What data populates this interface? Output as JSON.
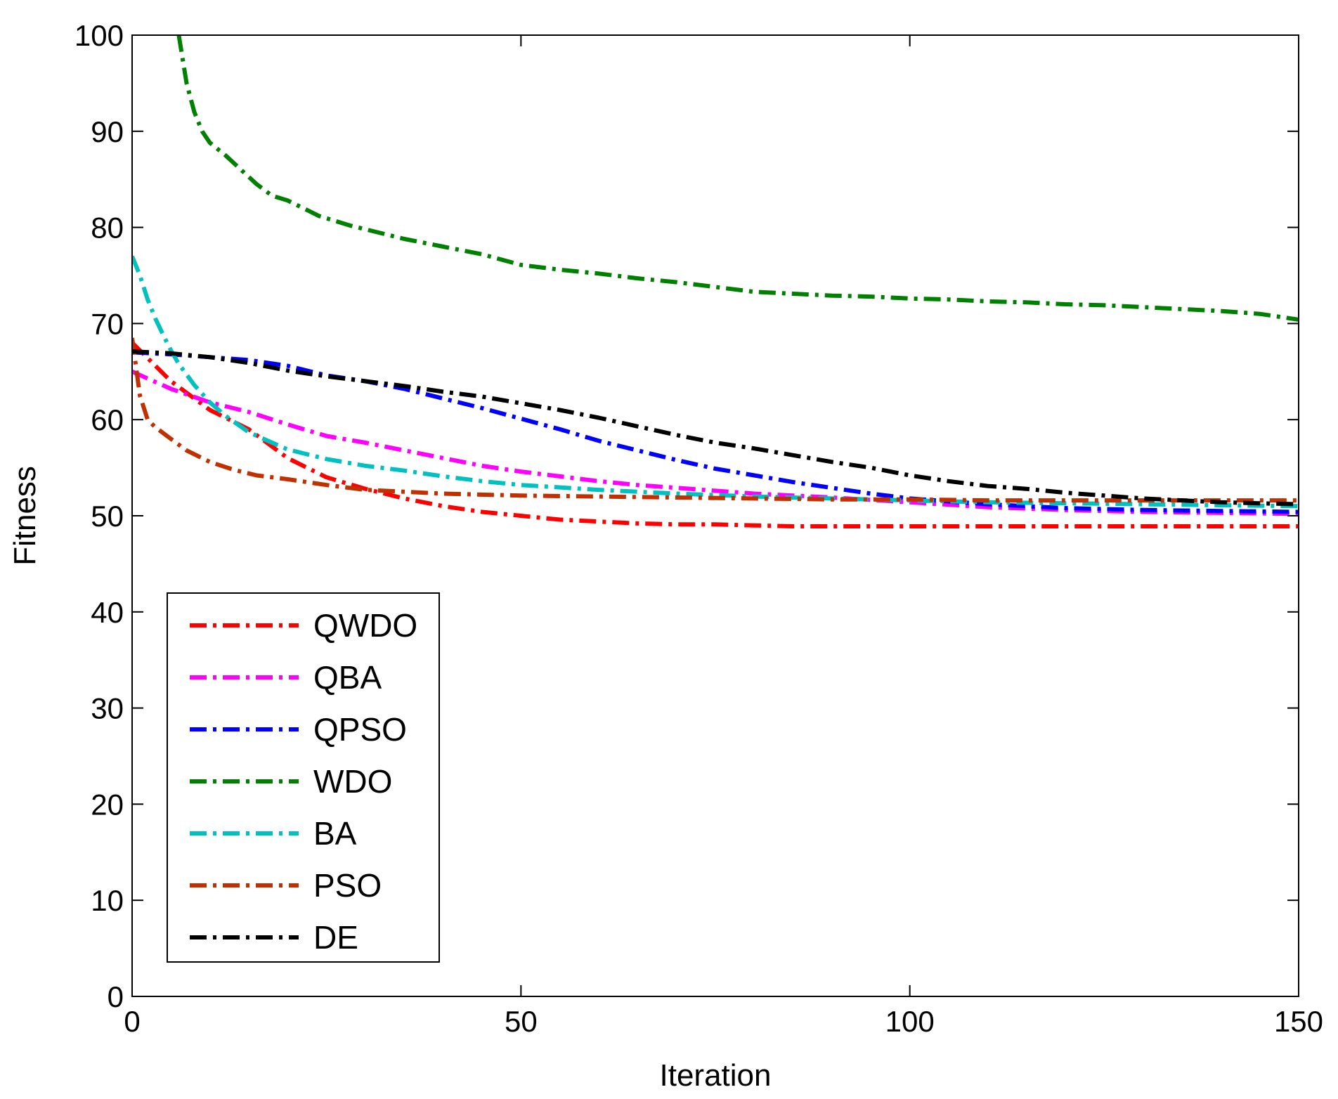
{
  "chart_data": {
    "type": "line",
    "title": "",
    "xlabel": "Iteration",
    "ylabel": "Fitness",
    "xlim": [
      0,
      150
    ],
    "ylim": [
      0,
      100
    ],
    "xticks": [
      0,
      50,
      100,
      150
    ],
    "yticks": [
      0,
      10,
      20,
      30,
      40,
      50,
      60,
      70,
      80,
      90,
      100
    ],
    "grid": false,
    "legend_position": "bottom-left",
    "series": [
      {
        "name": "QWDO",
        "color": "#ff0000",
        "x": [
          0,
          5,
          10,
          15,
          20,
          25,
          30,
          35,
          40,
          45,
          50,
          55,
          60,
          65,
          70,
          75,
          80,
          85,
          90,
          100,
          110,
          120,
          130,
          140,
          150
        ],
        "y": [
          68,
          64,
          61,
          59,
          56,
          54,
          52.8,
          51.8,
          51,
          50.4,
          50,
          49.6,
          49.4,
          49.2,
          49.1,
          49.1,
          49,
          48.9,
          48.9,
          48.9,
          48.9,
          48.9,
          48.9,
          48.9,
          48.9
        ]
      },
      {
        "name": "QBA",
        "color": "#ff00ff",
        "x": [
          0,
          5,
          10,
          15,
          20,
          25,
          30,
          35,
          40,
          45,
          50,
          55,
          60,
          65,
          70,
          75,
          80,
          90,
          100,
          110,
          120,
          130,
          140,
          150
        ],
        "y": [
          65,
          63.2,
          61.8,
          60.8,
          59.5,
          58.3,
          57.6,
          56.8,
          56,
          55.2,
          54.6,
          54.1,
          53.6,
          53.2,
          52.9,
          52.6,
          52.3,
          51.9,
          51.4,
          50.9,
          50.6,
          50.4,
          50.3,
          50.2
        ]
      },
      {
        "name": "QPSO",
        "color": "#0000ff",
        "x": [
          0,
          5,
          10,
          15,
          20,
          25,
          30,
          35,
          40,
          45,
          50,
          55,
          60,
          65,
          70,
          75,
          80,
          85,
          90,
          95,
          100,
          110,
          120,
          130,
          140,
          150
        ],
        "y": [
          67,
          66.8,
          66.5,
          66.2,
          65.6,
          64.6,
          64,
          63.2,
          62.2,
          61.2,
          60.1,
          59,
          57.8,
          56.8,
          55.8,
          54.9,
          54.2,
          53.5,
          52.9,
          52.3,
          51.8,
          51.2,
          50.8,
          50.6,
          50.5,
          50.4
        ]
      },
      {
        "name": "WDO",
        "color": "#008000",
        "x": [
          6,
          7,
          8,
          9,
          10,
          12,
          14,
          16,
          18,
          20,
          22,
          24,
          26,
          28,
          30,
          35,
          40,
          45,
          50,
          55,
          60,
          65,
          70,
          75,
          80,
          85,
          90,
          95,
          100,
          105,
          110,
          115,
          120,
          125,
          130,
          135,
          140,
          145,
          150
        ],
        "y": [
          100,
          95,
          92,
          90,
          88.8,
          87.5,
          86,
          84.5,
          83.3,
          82.8,
          82,
          81.2,
          80.7,
          80.2,
          79.8,
          78.8,
          78,
          77.2,
          76.1,
          75.6,
          75.2,
          74.7,
          74.3,
          73.8,
          73.3,
          73.1,
          72.9,
          72.8,
          72.6,
          72.5,
          72.3,
          72.2,
          72,
          71.9,
          71.7,
          71.5,
          71.3,
          71,
          70.4
        ]
      },
      {
        "name": "BA",
        "color": "#00c0c0",
        "x": [
          0,
          1,
          2,
          3,
          4,
          5,
          6,
          8,
          10,
          12,
          15,
          18,
          20,
          25,
          30,
          35,
          40,
          45,
          50,
          60,
          70,
          80,
          90,
          100,
          110,
          120,
          130,
          140,
          150
        ],
        "y": [
          77,
          75,
          72.5,
          70.5,
          68.8,
          67.2,
          65.8,
          63.6,
          61.8,
          60.4,
          58.7,
          57.6,
          56.9,
          55.9,
          55.2,
          54.7,
          54.1,
          53.6,
          53.2,
          52.7,
          52.3,
          52,
          51.8,
          51.6,
          51.4,
          51.3,
          51.2,
          51.1,
          51
        ]
      },
      {
        "name": "PSO",
        "color": "#c03000",
        "x": [
          0,
          1,
          2,
          3,
          5,
          7,
          10,
          13,
          16,
          20,
          25,
          30,
          35,
          40,
          50,
          60,
          70,
          80,
          90,
          100,
          110,
          120,
          130,
          140,
          150
        ],
        "y": [
          68.5,
          62.5,
          60,
          59.2,
          58,
          56.8,
          55.6,
          54.8,
          54.2,
          53.8,
          53.2,
          52.7,
          52.5,
          52.3,
          52.1,
          52,
          51.9,
          51.8,
          51.7,
          51.7,
          51.6,
          51.6,
          51.6,
          51.6,
          51.6
        ]
      },
      {
        "name": "DE",
        "color": "#000000",
        "x": [
          0,
          5,
          10,
          15,
          20,
          25,
          30,
          35,
          40,
          45,
          50,
          55,
          60,
          65,
          70,
          75,
          80,
          85,
          90,
          95,
          100,
          105,
          110,
          115,
          120,
          125,
          130,
          135,
          140,
          145,
          150
        ],
        "y": [
          67.1,
          66.9,
          66.5,
          65.9,
          65.1,
          64.5,
          64,
          63.5,
          62.9,
          62.4,
          61.7,
          61,
          60.2,
          59.3,
          58.4,
          57.6,
          57,
          56.3,
          55.6,
          55,
          54.2,
          53.6,
          53.1,
          52.8,
          52.4,
          52.1,
          51.8,
          51.6,
          51.4,
          51.3,
          51.2
        ]
      }
    ]
  }
}
